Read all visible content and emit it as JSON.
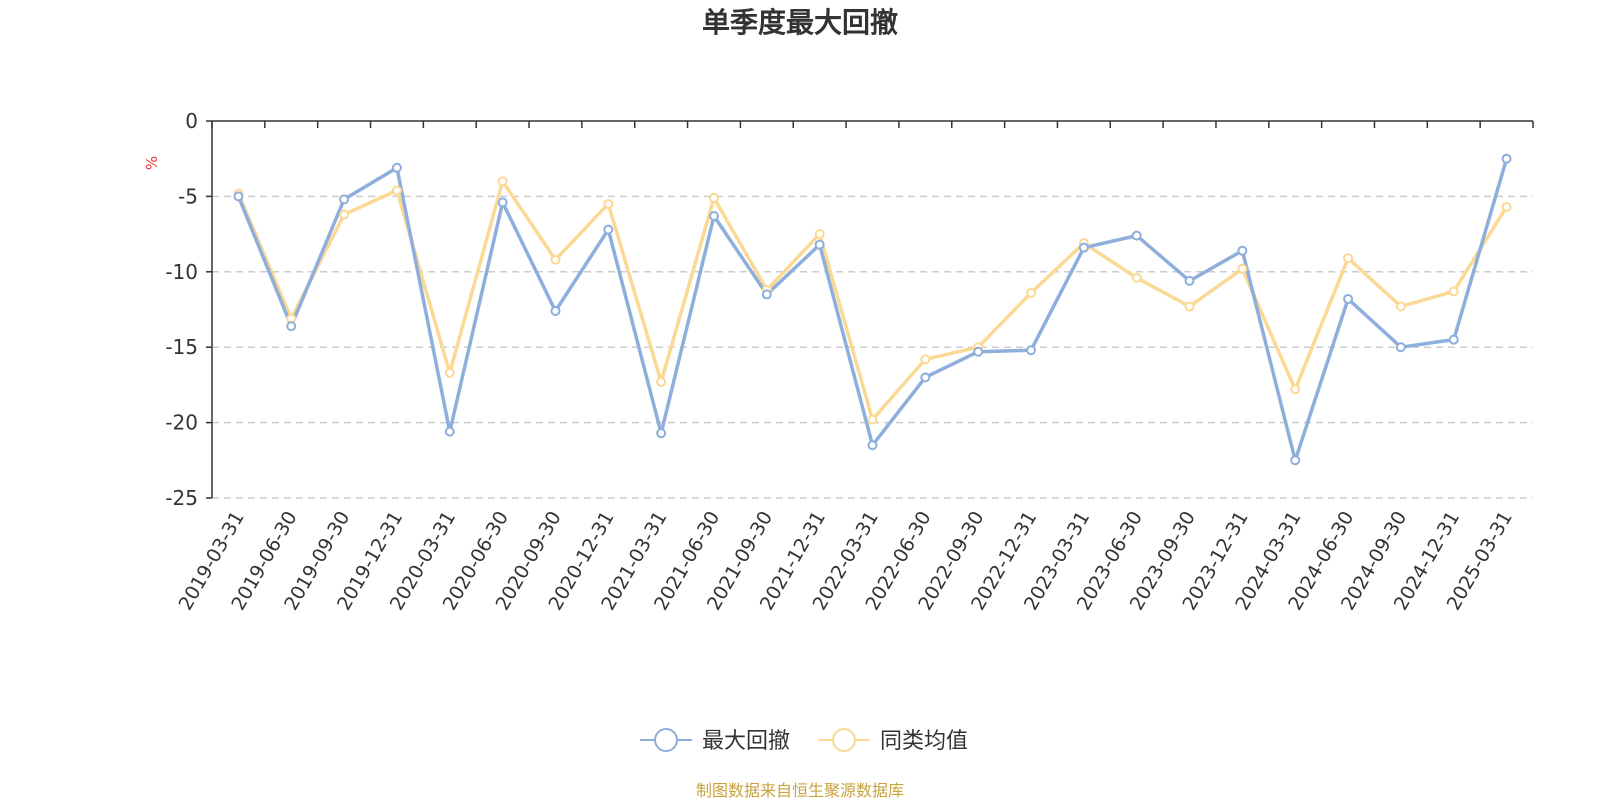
{
  "chart_data": {
    "type": "line",
    "title": "单季度最大回撤",
    "ylabel": "%",
    "ylim": [
      -25,
      0
    ],
    "yticks": [
      0,
      -5,
      -10,
      -15,
      -20,
      -25
    ],
    "grid": true,
    "legend_position": "bottom",
    "categories": [
      "2019-03-31",
      "2019-06-30",
      "2019-09-30",
      "2019-12-31",
      "2020-03-31",
      "2020-06-30",
      "2020-09-30",
      "2020-12-31",
      "2021-03-31",
      "2021-06-30",
      "2021-09-30",
      "2021-12-31",
      "2022-03-31",
      "2022-06-30",
      "2022-09-30",
      "2022-12-31",
      "2023-03-31",
      "2023-06-30",
      "2023-09-30",
      "2023-12-31",
      "2024-03-31",
      "2024-06-30",
      "2024-09-30",
      "2024-12-31",
      "2025-03-31"
    ],
    "series": [
      {
        "name": "最大回撤",
        "color": "#8eaedb",
        "values": [
          -5.0,
          -13.6,
          -5.2,
          -3.1,
          -20.6,
          -5.4,
          -12.6,
          -7.2,
          -20.7,
          -6.3,
          -11.5,
          -8.2,
          -21.5,
          -17.0,
          -15.3,
          -15.2,
          -8.4,
          -7.6,
          -10.6,
          -8.6,
          -22.5,
          -11.8,
          -15.0,
          -14.5,
          -2.5
        ]
      },
      {
        "name": "同类均值",
        "color": "#fbd995",
        "values": [
          -4.8,
          -13.1,
          -6.2,
          -4.6,
          -16.7,
          -4.0,
          -9.2,
          -5.5,
          -17.3,
          -5.1,
          -11.2,
          -7.5,
          -19.8,
          -15.8,
          -15.0,
          -11.4,
          -8.1,
          -10.4,
          -12.3,
          -9.8,
          -17.8,
          -9.1,
          -12.3,
          -11.3,
          -5.7
        ]
      }
    ]
  },
  "footer": {
    "source": "制图数据来自恒生聚源数据库"
  }
}
